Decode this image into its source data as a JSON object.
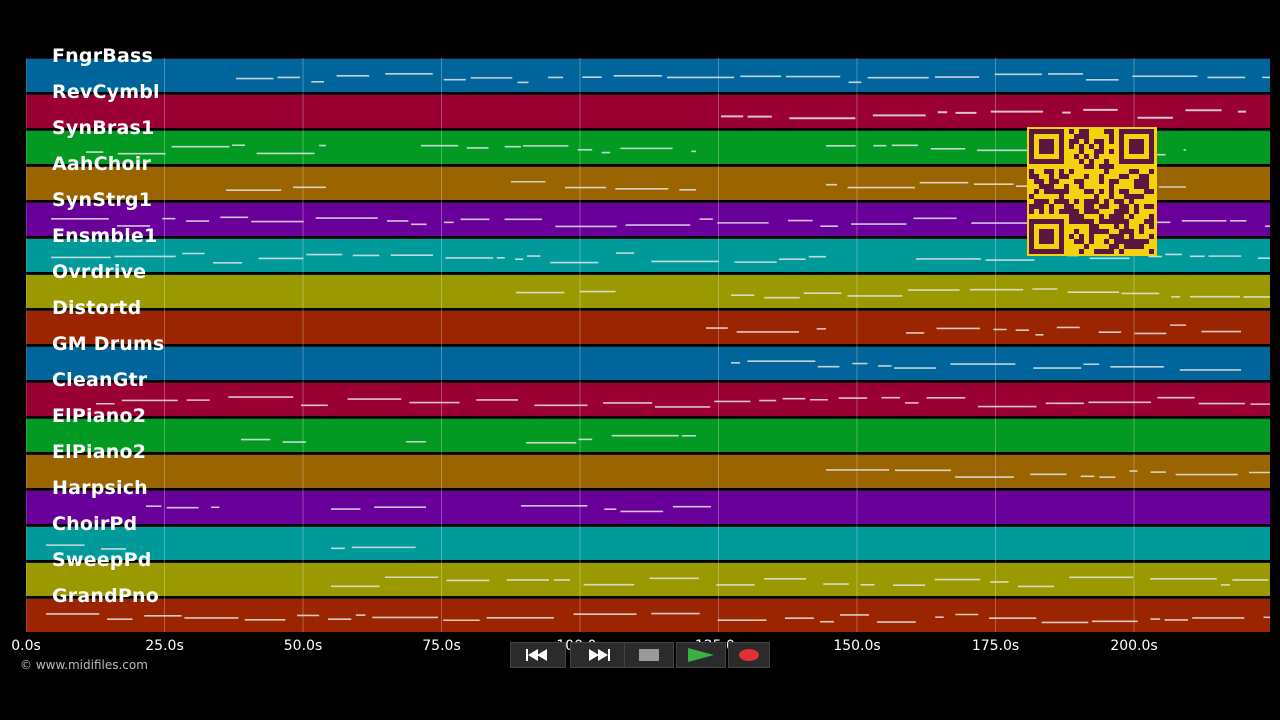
{
  "tracks": [
    {
      "name": "FngrBass",
      "color": "#00659a"
    },
    {
      "name": "RevCymbl",
      "color": "#9b0035"
    },
    {
      "name": "SynBras1",
      "color": "#029a22"
    },
    {
      "name": "AahChoir",
      "color": "#9a6500"
    },
    {
      "name": "SynStrg1",
      "color": "#6a009a"
    },
    {
      "name": "Ensmble1",
      "color": "#009a9a"
    },
    {
      "name": "Ovrdrive",
      "color": "#9a9a00"
    },
    {
      "name": "Distortd",
      "color": "#9a2500"
    },
    {
      "name": "GM Drums",
      "color": "#00659a"
    },
    {
      "name": "CleanGtr",
      "color": "#9b0035"
    },
    {
      "name": "ElPiano2",
      "color": "#029a22"
    },
    {
      "name": "ElPiano2",
      "color": "#9a6500"
    },
    {
      "name": "Harpsich",
      "color": "#6a009a"
    },
    {
      "name": "ChoirPd",
      "color": "#009a9a"
    },
    {
      "name": "SweepPd",
      "color": "#9a9a00"
    },
    {
      "name": "GrandPno",
      "color": "#9a2500"
    }
  ],
  "time_ticks": [
    {
      "label": "0.0s",
      "t": 0
    },
    {
      "label": "25.0s",
      "t": 25
    },
    {
      "label": "50.0s",
      "t": 50
    },
    {
      "label": "75.0s",
      "t": 75
    },
    {
      "label": "100.0s",
      "t": 100
    },
    {
      "label": "125.0s",
      "t": 125
    },
    {
      "label": "150.0s",
      "t": 150
    },
    {
      "label": "175.0s",
      "t": 175
    },
    {
      "label": "200.0s",
      "t": 200
    }
  ],
  "copyright": "© www.midifiles.com",
  "transport": {
    "rewind_icon": "rewind-icon",
    "forward_icon": "fast-forward-icon",
    "stop_icon": "stop-icon",
    "play_icon": "play-icon",
    "record_icon": "record-icon",
    "play_color": "#3cb043",
    "record_color": "#e0303a"
  },
  "qr_icon": "qr-code-icon",
  "qr_color": "#f5d20d"
}
